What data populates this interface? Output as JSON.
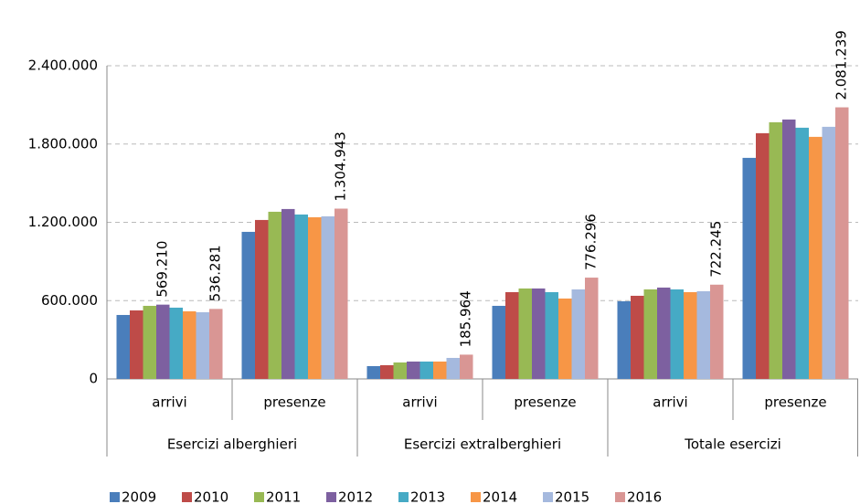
{
  "chart_data": {
    "type": "bar",
    "categories": [
      "arrivi",
      "presenze",
      "arrivi",
      "presenze",
      "arrivi",
      "presenze"
    ],
    "category_groups": [
      "Esercizi alberghieri",
      "Esercizi extralberghieri",
      "Totale esercizi"
    ],
    "series": [
      {
        "name": "2009",
        "color": "#4a7ebb",
        "values": [
          490000,
          1127000,
          98000,
          560000,
          595000,
          1694000
        ]
      },
      {
        "name": "2010",
        "color": "#be4b48",
        "values": [
          525000,
          1218000,
          105000,
          665000,
          637000,
          1883000
        ]
      },
      {
        "name": "2011",
        "color": "#98b954",
        "values": [
          560000,
          1281000,
          126000,
          693000,
          686000,
          1967000
        ]
      },
      {
        "name": "2012",
        "color": "#7d60a0",
        "values": [
          569210,
          1302000,
          133000,
          693000,
          700000,
          1988000
        ],
        "value_labels": [
          "569.210",
          null,
          null,
          null,
          null,
          null
        ]
      },
      {
        "name": "2013",
        "color": "#46aac5",
        "values": [
          546000,
          1260000,
          133000,
          665000,
          686000,
          1925000
        ]
      },
      {
        "name": "2014",
        "color": "#f79646",
        "values": [
          518000,
          1239000,
          133000,
          616000,
          665000,
          1855000
        ]
      },
      {
        "name": "2015",
        "color": "#a5b9de",
        "values": [
          511000,
          1246000,
          161000,
          686000,
          672000,
          1932000
        ]
      },
      {
        "name": "2016",
        "color": "#d99694",
        "values": [
          536281,
          1304943,
          185964,
          776296,
          722245,
          2081239
        ],
        "value_labels": [
          "536.281",
          "1.304.943",
          "185.964",
          "776.296",
          "722.245",
          "2.081.239"
        ]
      }
    ],
    "ylim": [
      0,
      2400000
    ],
    "yticks": [
      0,
      {
        "value": 600000,
        "label": "600.000"
      },
      {
        "value": 1200000,
        "label": "1.200.000"
      },
      {
        "value": 1800000,
        "label": "1.800.000"
      },
      {
        "value": 2400000,
        "label": "2.400.000"
      }
    ],
    "grid": true,
    "legend": "bottom"
  }
}
